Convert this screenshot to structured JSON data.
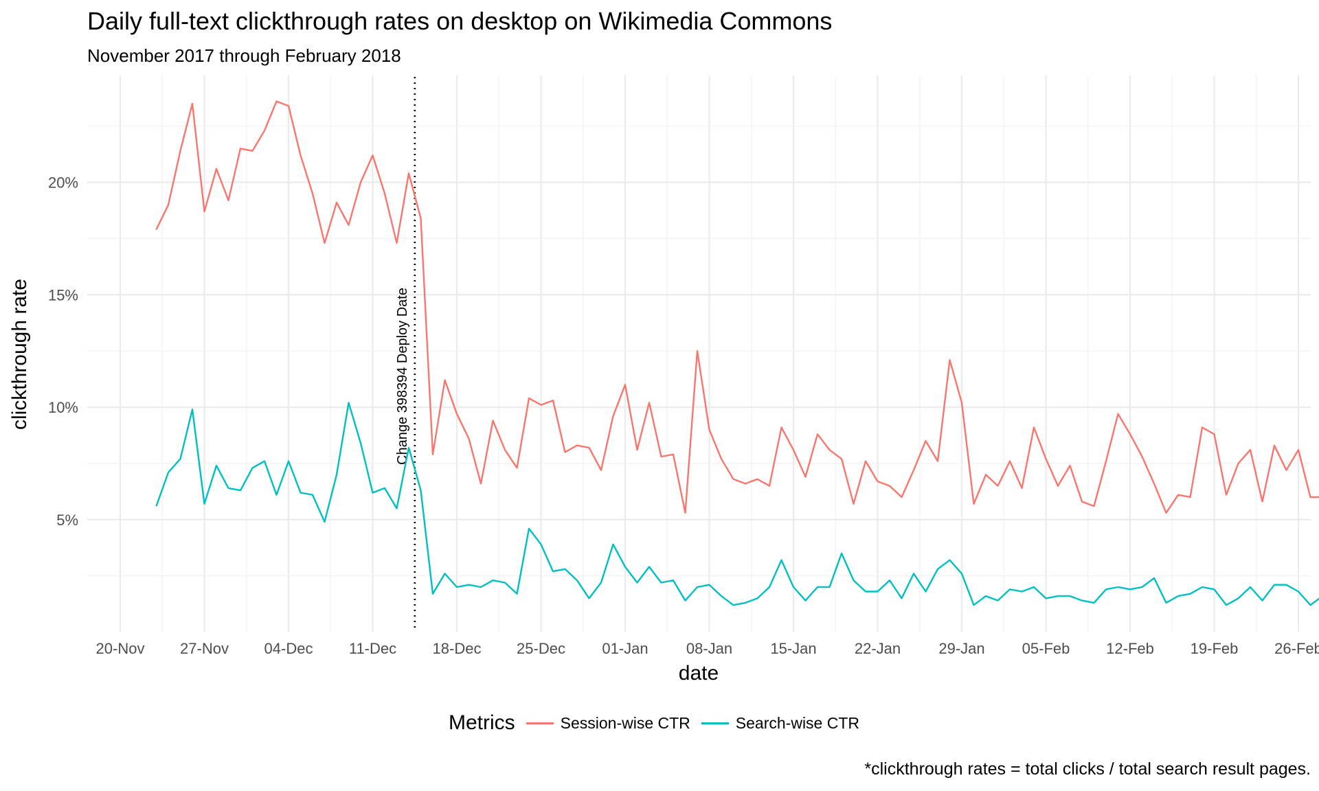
{
  "chart_data": {
    "type": "line",
    "title": "Daily full-text clickthrough rates on desktop on Wikimedia Commons",
    "subtitle": "November 2017 through February 2018",
    "xlabel": "date",
    "ylabel": "clickthrough rate",
    "caption": "*clickthrough rates = total clicks / total search result pages.",
    "x_ticks": [
      "20-Nov",
      "27-Nov",
      "04-Dec",
      "11-Dec",
      "18-Dec",
      "25-Dec",
      "01-Jan",
      "08-Jan",
      "15-Jan",
      "22-Jan",
      "29-Jan",
      "05-Feb",
      "12-Feb",
      "19-Feb",
      "26-Feb"
    ],
    "y_ticks": [
      "5%",
      "10%",
      "15%",
      "20%"
    ],
    "ylim": [
      0.6,
      24.5
    ],
    "x_start": "2017-11-23",
    "grid": true,
    "legend": {
      "title": "Metrics",
      "position": "bottom"
    },
    "annotation": {
      "date": "2017-12-14",
      "label": "Change 398394 Deploy Date"
    },
    "series": [
      {
        "name": "Session-wise CTR",
        "color": "#F8766D",
        "values": [
          17.9,
          19.0,
          21.4,
          23.5,
          18.7,
          20.6,
          19.2,
          21.5,
          21.4,
          22.3,
          23.6,
          23.4,
          21.2,
          19.5,
          17.3,
          19.1,
          18.1,
          20.0,
          21.2,
          19.5,
          17.3,
          20.4,
          18.4,
          7.9,
          11.2,
          9.7,
          8.6,
          6.6,
          9.4,
          8.1,
          7.3,
          10.4,
          10.1,
          10.3,
          8.0,
          8.3,
          8.2,
          7.2,
          9.6,
          11.0,
          8.1,
          10.2,
          7.8,
          7.9,
          5.3,
          12.5,
          9.0,
          7.7,
          6.8,
          6.6,
          6.8,
          6.5,
          9.1,
          8.1,
          6.9,
          8.8,
          8.1,
          7.7,
          5.7,
          7.6,
          6.7,
          6.5,
          6.0,
          7.2,
          8.5,
          7.6,
          12.1,
          10.2,
          5.7,
          7.0,
          6.5,
          7.6,
          6.4,
          9.1,
          7.7,
          6.5,
          7.4,
          5.8,
          5.6,
          7.6,
          9.7,
          8.8,
          7.8,
          6.6,
          5.3,
          6.1,
          6.0,
          9.1,
          8.8,
          6.1,
          7.5,
          8.1,
          5.8,
          8.3,
          7.2,
          8.1,
          6.0,
          6.0
        ]
      },
      {
        "name": "Search-wise CTR",
        "color": "#00BFC4",
        "values": [
          5.6,
          7.1,
          7.7,
          9.9,
          5.7,
          7.4,
          6.4,
          6.3,
          7.3,
          7.6,
          6.1,
          7.6,
          6.2,
          6.1,
          4.9,
          7.0,
          10.2,
          8.4,
          6.2,
          6.4,
          5.5,
          8.2,
          6.3,
          1.7,
          2.6,
          2.0,
          2.1,
          2.0,
          2.3,
          2.2,
          1.7,
          4.6,
          3.9,
          2.7,
          2.8,
          2.3,
          1.5,
          2.2,
          3.9,
          2.9,
          2.2,
          2.9,
          2.2,
          2.3,
          1.4,
          2.0,
          2.1,
          1.6,
          1.2,
          1.3,
          1.5,
          2.0,
          3.2,
          2.0,
          1.4,
          2.0,
          2.0,
          3.5,
          2.3,
          1.8,
          1.8,
          2.3,
          1.5,
          2.6,
          1.8,
          2.8,
          3.2,
          2.6,
          1.2,
          1.6,
          1.4,
          1.9,
          1.8,
          2.0,
          1.5,
          1.6,
          1.6,
          1.4,
          1.3,
          1.9,
          2.0,
          1.9,
          2.0,
          2.4,
          1.3,
          1.6,
          1.7,
          2.0,
          1.9,
          1.2,
          1.5,
          2.0,
          1.4,
          2.1,
          2.1,
          1.8,
          1.2,
          1.6
        ]
      }
    ]
  }
}
